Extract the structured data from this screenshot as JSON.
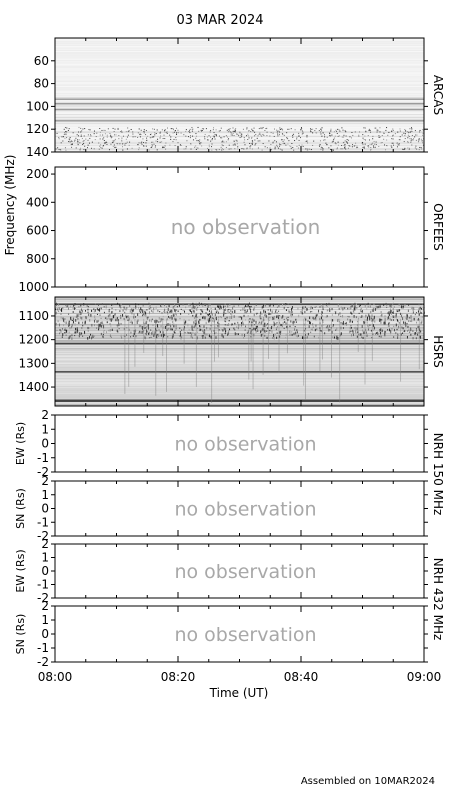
{
  "title": "03 MAR 2024",
  "footer": "Assembled on 10MAR2024",
  "chart_data": {
    "type": "heatmap",
    "title": "03 MAR 2024",
    "xlabel": "Time (UT)",
    "x_ticks": [
      "08:00",
      "08:20",
      "08:40",
      "09:00"
    ],
    "xlim": [
      "08:00",
      "09:00"
    ],
    "frequency_label": "Frequency (MHz)",
    "no_observation_text": "no observation",
    "panels": [
      {
        "id": "arcas",
        "name": "ARCAS",
        "ylim": [
          140,
          40
        ],
        "yticks": [
          "60",
          "80",
          "100",
          "120",
          "140"
        ],
        "observed": true
      },
      {
        "id": "orfees",
        "name": "ORFEES",
        "ylim": [
          1000,
          150
        ],
        "yticks": [
          "200",
          "400",
          "600",
          "800",
          "1000"
        ],
        "observed": false
      },
      {
        "id": "hsrs",
        "name": "HSRS",
        "ylim": [
          1480,
          1020
        ],
        "yticks": [
          "1100",
          "1200",
          "1300",
          "1400"
        ],
        "observed": true
      },
      {
        "id": "nrh150ew",
        "ylabel": "EW (Rs)",
        "ylim": [
          -2,
          2
        ],
        "yticks": [
          "2",
          "1",
          "0",
          "-1",
          "-2"
        ],
        "observed": false
      },
      {
        "id": "nrh150sn",
        "ylabel": "SN (Rs)",
        "ylim": [
          -2,
          2
        ],
        "yticks": [
          "2",
          "1",
          "0",
          "-1",
          "-2"
        ],
        "observed": false
      },
      {
        "id": "nrh432ew",
        "ylabel": "EW (Rs)",
        "ylim": [
          -2,
          2
        ],
        "yticks": [
          "2",
          "1",
          "0",
          "-1",
          "-2"
        ],
        "observed": false
      },
      {
        "id": "nrh432sn",
        "ylabel": "SN (Rs)",
        "ylim": [
          -2,
          2
        ],
        "yticks": [
          "2",
          "1",
          "0",
          "-1",
          "-2"
        ],
        "observed": false
      }
    ],
    "nrh_labels": [
      "NRH 150 MHz",
      "NRH 432 MHz"
    ]
  }
}
